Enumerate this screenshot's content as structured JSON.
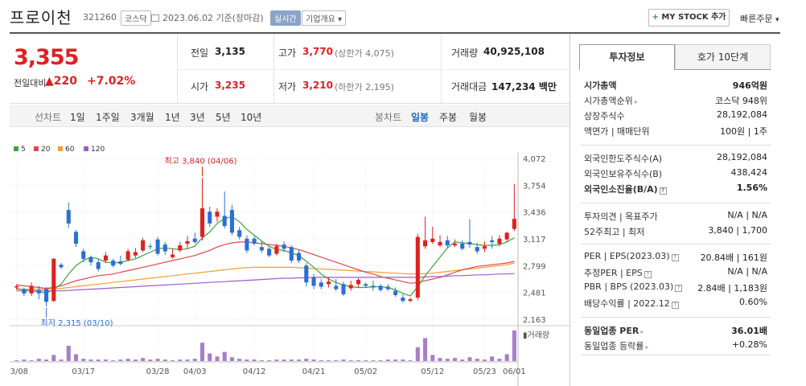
{
  "header": {
    "title": "프로이천",
    "code": "321260",
    "market": "코스닥",
    "date": "2023.06.02 기준(장마감)",
    "realtime": "실시간",
    "corp_info": "기업개요",
    "mystock_btn": "MY STOCK 추가",
    "fast_order": "빠른주문"
  },
  "price": {
    "current": "3,355",
    "prev_label": "전일대비",
    "change": "▲220",
    "change_pct": "+7.02%"
  },
  "summary": {
    "prev_close_label": "전일",
    "prev_close": "3,135",
    "open_label": "시가",
    "open": "3,235",
    "high_label": "고가",
    "high": "3,770",
    "upper_limit": "(상한가 4,075)",
    "low_label": "저가",
    "low": "3,210",
    "lower_limit": "(하한가 2,195)",
    "volume_label": "거래량",
    "volume": "40,925,108",
    "amount_label": "거래대금",
    "amount": "147,234 백만"
  },
  "period": {
    "line_label": "선차트",
    "line_items": [
      "1일",
      "1주일",
      "3개월",
      "1년",
      "3년",
      "5년",
      "10년"
    ],
    "candle_label": "봉차트",
    "candle_items": [
      "일봉",
      "주봉",
      "월봉"
    ]
  },
  "legend": {
    "ma5": "5",
    "ma20": "20",
    "ma60": "60",
    "ma120": "120",
    "colors": {
      "ma5": "#3ba33b",
      "ma20": "#e04848",
      "ma60": "#f0a030",
      "ma120": "#a05cc8"
    }
  },
  "chart_data": {
    "type": "candlestick",
    "y_ticks": [
      "4,072",
      "3,754",
      "3,436",
      "3,117",
      "2,799",
      "2,481",
      "2,163"
    ],
    "ylim": [
      2163,
      4072
    ],
    "x_ticks": [
      "03/08",
      "03/17",
      "03/28",
      "04/03",
      "04/12",
      "04/21",
      "05/02",
      "05/12",
      "05/23",
      "06/01"
    ],
    "high_note": "최고 3,840 (04/06)",
    "low_note": "최저 2,315 (03/10)",
    "volume_label": "거래량",
    "up_color": "#e02020",
    "down_color": "#2a6fd6",
    "candles": [
      [
        2540,
        2555,
        2510,
        2580
      ],
      [
        2520,
        2470,
        2440,
        2540
      ],
      [
        2470,
        2560,
        2440,
        2600
      ],
      [
        2510,
        2470,
        2400,
        2560
      ],
      [
        2520,
        2370,
        2315,
        2545
      ],
      [
        2380,
        2880,
        2370,
        2890
      ],
      [
        2810,
        2780,
        2760,
        2830
      ],
      [
        3460,
        3300,
        3250,
        3550
      ],
      [
        3200,
        3060,
        3020,
        3220
      ],
      [
        2970,
        2880,
        2840,
        3000
      ],
      [
        2900,
        2840,
        2800,
        2920
      ],
      [
        2840,
        2760,
        2730,
        2880
      ],
      [
        2860,
        2920,
        2830,
        2960
      ],
      [
        2860,
        2800,
        2780,
        2880
      ],
      [
        2850,
        2820,
        2800,
        2920
      ],
      [
        2870,
        2970,
        2850,
        3000
      ],
      [
        2920,
        2960,
        2890,
        3010
      ],
      [
        2980,
        3100,
        2960,
        3130
      ],
      [
        3030,
        3020,
        2990,
        3060
      ],
      [
        3110,
        2940,
        2920,
        3140
      ],
      [
        3050,
        2970,
        2930,
        3080
      ],
      [
        2900,
        2930,
        2880,
        3000
      ],
      [
        2980,
        3040,
        2960,
        3080
      ],
      [
        3060,
        3090,
        3000,
        3150
      ],
      [
        3120,
        3080,
        3060,
        3190
      ],
      [
        3140,
        3480,
        3100,
        3840
      ],
      [
        3440,
        3300,
        3260,
        3500
      ],
      [
        3380,
        3440,
        3320,
        3480
      ],
      [
        3390,
        3270,
        3240,
        3680
      ],
      [
        3460,
        3190,
        3160,
        3520
      ],
      [
        3220,
        3140,
        3110,
        3260
      ],
      [
        3120,
        2980,
        2950,
        3160
      ],
      [
        3120,
        3060,
        3040,
        3150
      ],
      [
        3020,
        2980,
        2950,
        3090
      ],
      [
        3000,
        2920,
        2900,
        3020
      ],
      [
        2940,
        3030,
        2920,
        3060
      ],
      [
        3050,
        3000,
        2960,
        3090
      ],
      [
        3020,
        2860,
        2830,
        3040
      ],
      [
        2950,
        2860,
        2830,
        2990
      ],
      [
        2800,
        2600,
        2550,
        2830
      ],
      [
        2660,
        2560,
        2520,
        2700
      ],
      [
        2600,
        2550,
        2520,
        2640
      ],
      [
        2580,
        2610,
        2540,
        2660
      ],
      [
        2560,
        2520,
        2500,
        2640
      ],
      [
        2580,
        2460,
        2440,
        2610
      ],
      [
        2530,
        2570,
        2500,
        2620
      ],
      [
        2580,
        2630,
        2540,
        2650
      ],
      [
        2580,
        2560,
        2540,
        2600
      ],
      [
        2560,
        2540,
        2500,
        2620
      ],
      [
        2560,
        2510,
        2490,
        2580
      ],
      [
        2550,
        2520,
        2500,
        2580
      ],
      [
        2500,
        2450,
        2430,
        2540
      ],
      [
        2420,
        2380,
        2360,
        2460
      ],
      [
        2380,
        2400,
        2370,
        2420
      ],
      [
        2420,
        3140,
        2390,
        3180
      ],
      [
        3030,
        3100,
        3000,
        3380
      ],
      [
        3080,
        3120,
        3060,
        3260
      ],
      [
        3040,
        3080,
        3020,
        3160
      ],
      [
        3100,
        3040,
        3010,
        3150
      ],
      [
        3040,
        3060,
        3020,
        3110
      ],
      [
        3060,
        3000,
        2980,
        3100
      ],
      [
        3080,
        3050,
        3010,
        3350
      ],
      [
        3020,
        2970,
        2940,
        3070
      ],
      [
        3000,
        3030,
        2960,
        3090
      ],
      [
        3100,
        3080,
        3000,
        3150
      ],
      [
        3060,
        3120,
        3030,
        3160
      ],
      [
        3110,
        3190,
        3080,
        3200
      ],
      [
        3235,
        3355,
        3210,
        3770
      ]
    ],
    "volume": [
      1,
      2,
      1,
      3,
      2,
      8,
      2,
      20,
      9,
      3,
      2,
      2,
      2,
      1,
      2,
      3,
      2,
      4,
      2,
      3,
      2,
      1,
      2,
      2,
      3,
      24,
      10,
      6,
      12,
      5,
      3,
      2,
      2,
      1,
      1,
      2,
      2,
      2,
      2,
      3,
      2,
      1,
      1,
      1,
      2,
      1,
      1,
      1,
      1,
      1,
      2,
      2,
      2,
      1,
      18,
      30,
      8,
      4,
      3,
      4,
      2,
      5,
      3,
      2,
      6,
      3,
      9,
      40
    ],
    "ma5": [
      2530,
      2510,
      2500,
      2490,
      2470,
      2520,
      2580,
      2700,
      2800,
      2860,
      2900,
      2880,
      2840,
      2830,
      2840,
      2860,
      2880,
      2920,
      2960,
      3000,
      3010,
      3000,
      2990,
      3000,
      3030,
      3130,
      3200,
      3300,
      3360,
      3380,
      3320,
      3230,
      3160,
      3090,
      3030,
      2990,
      2980,
      2950,
      2920,
      2850,
      2780,
      2700,
      2640,
      2600,
      2570,
      2550,
      2540,
      2540,
      2550,
      2550,
      2540,
      2510,
      2470,
      2440,
      2550,
      2680,
      2790,
      2900,
      3010,
      3080,
      3070,
      3060,
      3050,
      3040,
      3040,
      3050,
      3080,
      3130
    ],
    "ma20": [
      2570,
      2560,
      2550,
      2540,
      2530,
      2540,
      2560,
      2590,
      2620,
      2640,
      2660,
      2680,
      2690,
      2700,
      2720,
      2740,
      2760,
      2780,
      2800,
      2820,
      2840,
      2860,
      2880,
      2900,
      2920,
      2950,
      2980,
      3020,
      3050,
      3070,
      3080,
      3080,
      3070,
      3060,
      3050,
      3040,
      3030,
      3010,
      2990,
      2960,
      2930,
      2900,
      2870,
      2840,
      2810,
      2780,
      2750,
      2720,
      2700,
      2670,
      2650,
      2630,
      2610,
      2590,
      2600,
      2620,
      2640,
      2660,
      2690,
      2720,
      2750,
      2770,
      2790,
      2800,
      2810,
      2820,
      2830,
      2850
    ],
    "ma60": [
      2520,
      2520,
      2520,
      2520,
      2520,
      2525,
      2530,
      2540,
      2550,
      2560,
      2570,
      2580,
      2590,
      2600,
      2610,
      2620,
      2630,
      2640,
      2650,
      2660,
      2670,
      2680,
      2690,
      2700,
      2710,
      2720,
      2730,
      2740,
      2750,
      2760,
      2770,
      2775,
      2780,
      2780,
      2780,
      2780,
      2780,
      2780,
      2775,
      2770,
      2765,
      2760,
      2755,
      2750,
      2745,
      2740,
      2735,
      2730,
      2725,
      2720,
      2715,
      2710,
      2705,
      2700,
      2700,
      2705,
      2710,
      2720,
      2730,
      2740,
      2750,
      2760,
      2770,
      2780,
      2790,
      2800,
      2810,
      2830
    ],
    "ma120": [
      2500,
      2500,
      2500,
      2500,
      2500,
      2500,
      2500,
      2505,
      2510,
      2515,
      2520,
      2525,
      2530,
      2535,
      2540,
      2545,
      2550,
      2555,
      2560,
      2565,
      2570,
      2575,
      2580,
      2585,
      2590,
      2595,
      2600,
      2605,
      2610,
      2615,
      2620,
      2625,
      2630,
      2635,
      2640,
      2645,
      2650,
      2650,
      2655,
      2655,
      2660,
      2660,
      2660,
      2660,
      2660,
      2660,
      2660,
      2660,
      2660,
      2660,
      2660,
      2660,
      2660,
      2660,
      2660,
      2665,
      2670,
      2670,
      2675,
      2680,
      2680,
      2685,
      2690,
      2690,
      2695,
      2700,
      2700,
      2705
    ]
  },
  "right_panel": {
    "tab_invest": "투자정보",
    "tab_hoga": "호가 10단계",
    "market_cap_label": "시가총액",
    "market_cap": "946억원",
    "cap_rank_label": "시가총액순위",
    "cap_rank": "코스닥 948위",
    "shares_label": "상장주식수",
    "shares": "28,192,084",
    "par_label": "액면가 | 매매단위",
    "par": "100원 | 1주",
    "foreign_limit_label": "외국인한도주식수(A)",
    "foreign_limit": "28,192,084",
    "foreign_hold_label": "외국인보유주식수(B)",
    "foreign_hold": "438,424",
    "foreign_rate_label": "외국인소진율(B/A)",
    "foreign_rate": "1.56%",
    "opinion_label": "투자의견 | 목표주가",
    "opinion": "N/A | N/A",
    "w52_label": "52주최고 | 최저",
    "w52": "3,840 | 1,700",
    "per_label": "PER | EPS(2023.03)",
    "per": "20.84배 | 161원",
    "est_per_label": "추정PER | EPS",
    "est_per": "N/A | N/A",
    "pbr_label": "PBR | BPS (2023.03)",
    "pbr": "2.84배 | 1,183원",
    "div_label": "배당수익률 | 2022.12",
    "div": "0.60%",
    "ind_per_label": "동일업종 PER",
    "ind_per": "36.01배",
    "ind_rate_label": "동일업종 등락률",
    "ind_rate": "+0.28%"
  }
}
